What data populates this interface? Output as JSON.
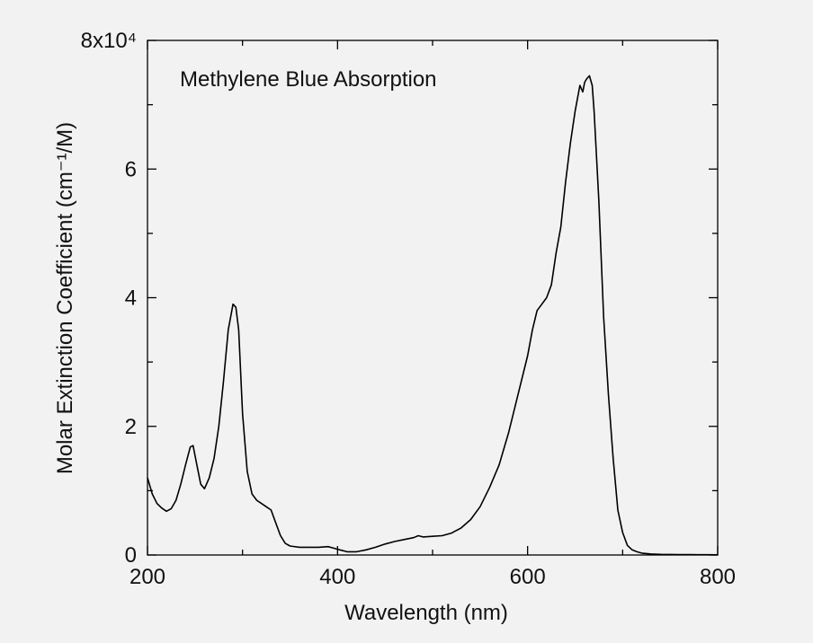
{
  "chart_data": {
    "type": "line",
    "title": "Methylene Blue Absorption",
    "xlabel": "Wavelength (nm)",
    "ylabel": "Molar Extinction Coefficient (cm⁻¹/M)",
    "xlim": [
      200,
      800
    ],
    "ylim": [
      0,
      80000
    ],
    "x_ticks": [
      200,
      400,
      600,
      800
    ],
    "x_tick_labels": [
      "200",
      "400",
      "600",
      "800"
    ],
    "y_ticks": [
      0,
      20000,
      40000,
      60000,
      80000
    ],
    "y_tick_labels": [
      "0",
      "2",
      "4",
      "6",
      "8x10⁴"
    ],
    "grid": false,
    "series": [
      {
        "color": "#000000",
        "x": [
          200,
          205,
          210,
          215,
          220,
          225,
          230,
          235,
          240,
          245,
          248,
          252,
          256,
          260,
          265,
          270,
          275,
          280,
          285,
          290,
          293,
          296,
          300,
          305,
          310,
          315,
          320,
          325,
          330,
          335,
          340,
          345,
          350,
          360,
          370,
          380,
          390,
          395,
          400,
          410,
          420,
          430,
          440,
          450,
          460,
          470,
          480,
          485,
          490,
          500,
          510,
          520,
          530,
          540,
          550,
          560,
          570,
          580,
          590,
          600,
          605,
          610,
          615,
          620,
          625,
          630,
          635,
          640,
          645,
          650,
          655,
          658,
          660,
          662,
          665,
          668,
          670,
          675,
          680,
          685,
          690,
          695,
          700,
          705,
          710,
          715,
          720,
          730,
          740,
          750,
          760,
          770,
          780,
          790,
          800
        ],
        "y": [
          12000,
          9500,
          8000,
          7300,
          6800,
          7200,
          8500,
          11000,
          14000,
          16800,
          17000,
          14000,
          11000,
          10300,
          12000,
          15000,
          20000,
          27000,
          35000,
          39000,
          38500,
          35000,
          22000,
          13000,
          9500,
          8500,
          8000,
          7500,
          7000,
          5000,
          3000,
          1800,
          1400,
          1200,
          1200,
          1200,
          1300,
          1100,
          900,
          500,
          500,
          800,
          1200,
          1700,
          2100,
          2400,
          2700,
          3000,
          2800,
          2900,
          3000,
          3400,
          4200,
          5500,
          7500,
          10500,
          14000,
          19000,
          25000,
          31000,
          35000,
          38000,
          39000,
          40000,
          42000,
          47000,
          51000,
          58000,
          64000,
          69000,
          73000,
          72000,
          73500,
          74000,
          74500,
          73000,
          69000,
          55000,
          37000,
          25000,
          15000,
          7000,
          3500,
          1500,
          800,
          500,
          300,
          150,
          100,
          80,
          60,
          50,
          40,
          40,
          30
        ]
      }
    ]
  }
}
